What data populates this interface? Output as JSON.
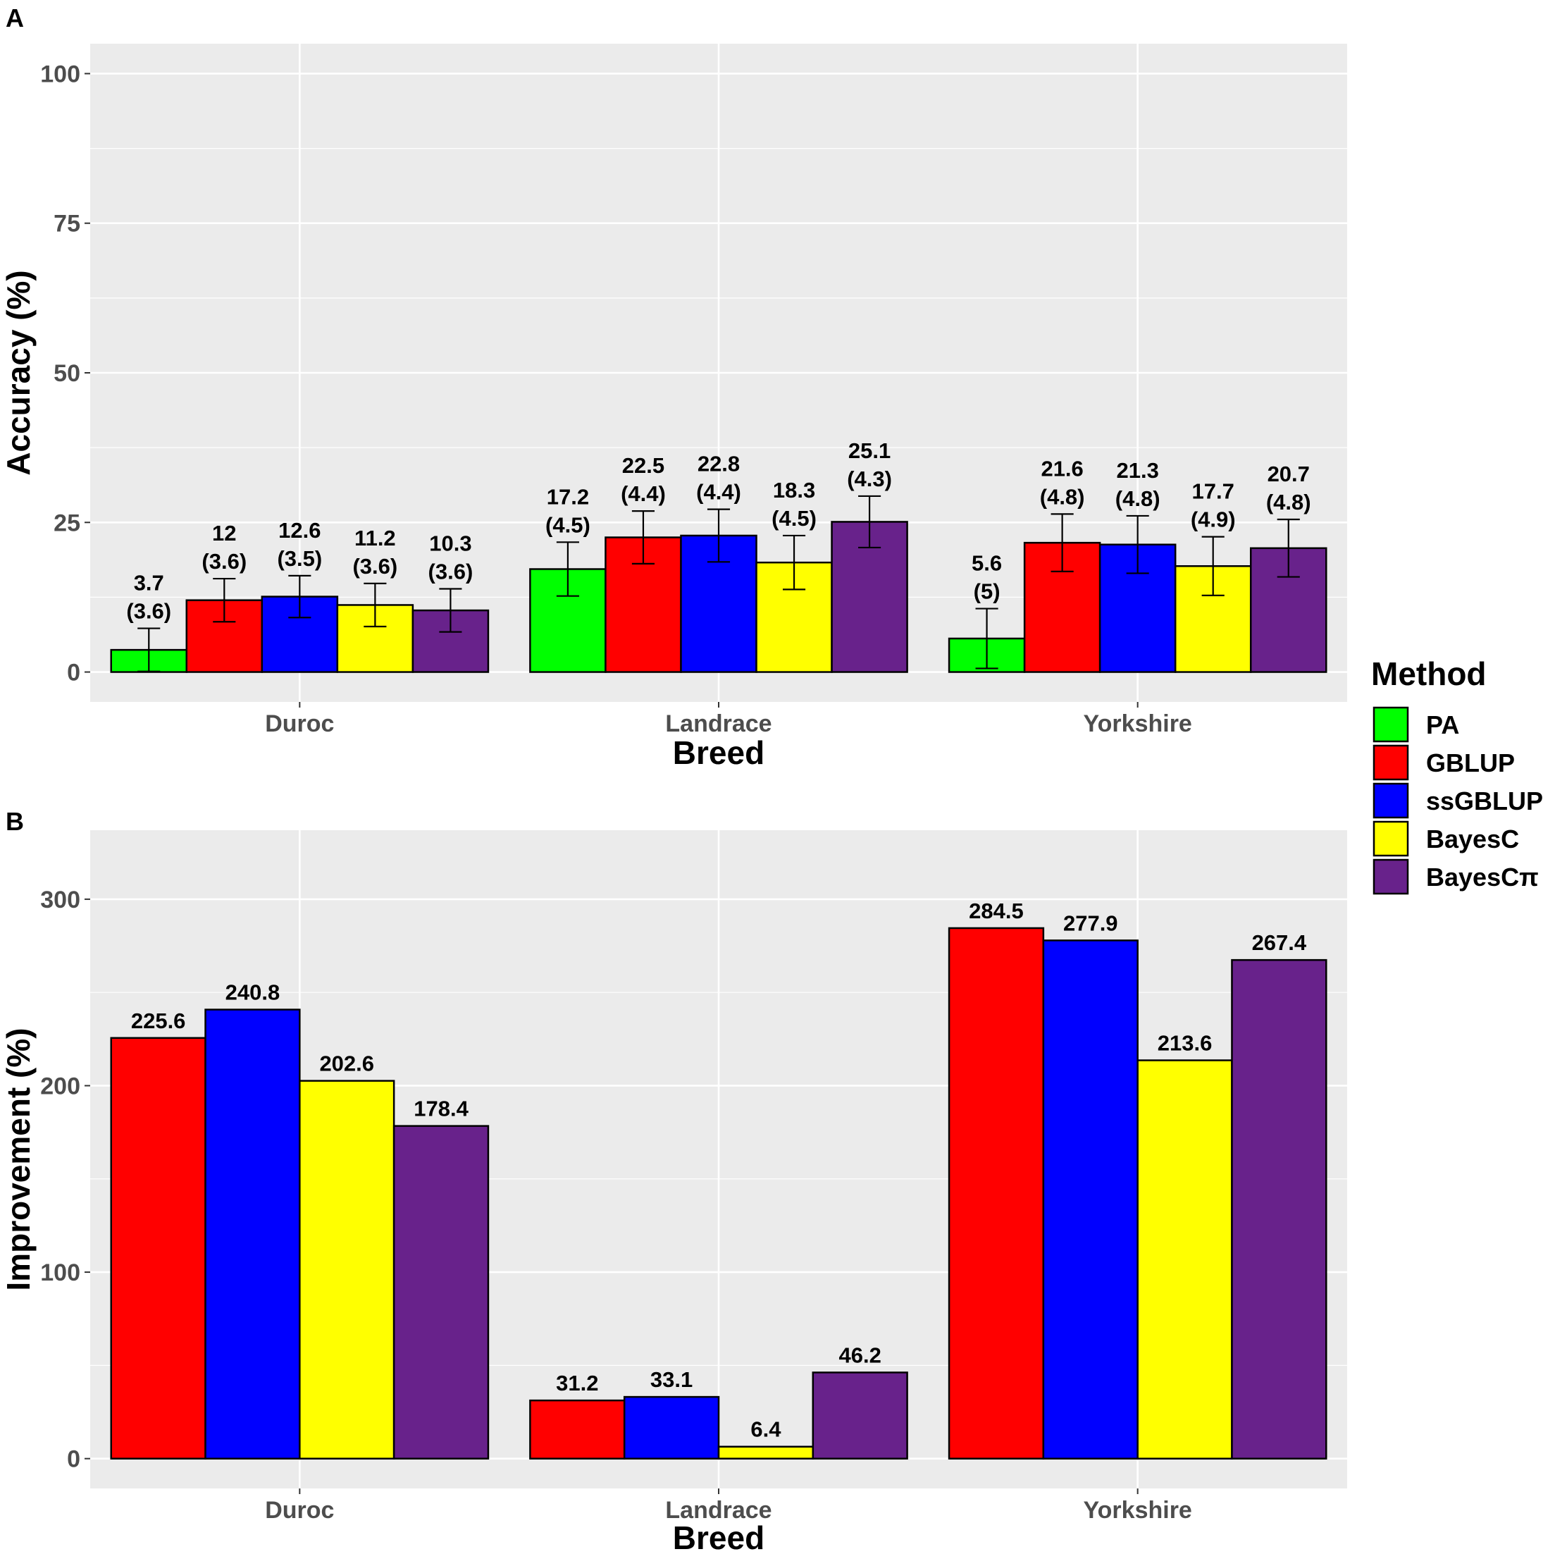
{
  "legend": {
    "title": "Method",
    "items": [
      {
        "label": "PA",
        "color": "#00ff00"
      },
      {
        "label": "GBLUP",
        "color": "#ff0000"
      },
      {
        "label": "ssGBLUP",
        "color": "#0000ff"
      },
      {
        "label": "BayesC",
        "color": "#ffff00"
      },
      {
        "label": "BayesCπ",
        "color": "#68228b"
      }
    ]
  },
  "chart_data": [
    {
      "panel": "A",
      "type": "bar",
      "xlabel": "Breed",
      "ylabel": "Accuracy (%)",
      "categories": [
        "Duroc",
        "Landrace",
        "Yorkshire"
      ],
      "ylim": [
        -5,
        105
      ],
      "yticks": [
        0,
        25,
        50,
        75,
        100
      ],
      "series": [
        {
          "name": "PA",
          "color": "#00ff00",
          "values": [
            3.7,
            17.2,
            5.6
          ],
          "errors": [
            3.6,
            4.5,
            5
          ],
          "labels": [
            "3.7\n(3.6)",
            "17.2\n(4.5)",
            "5.6\n(5)"
          ]
        },
        {
          "name": "GBLUP",
          "color": "#ff0000",
          "values": [
            12,
            22.5,
            21.6
          ],
          "errors": [
            3.6,
            4.4,
            4.8
          ],
          "labels": [
            "12\n(3.6)",
            "22.5\n(4.4)",
            "21.6\n(4.8)"
          ]
        },
        {
          "name": "ssGBLUP",
          "color": "#0000ff",
          "values": [
            12.6,
            22.8,
            21.3
          ],
          "errors": [
            3.5,
            4.4,
            4.8
          ],
          "labels": [
            "12.6\n(3.5)",
            "22.8\n(4.4)",
            "21.3\n(4.8)"
          ]
        },
        {
          "name": "BayesC",
          "color": "#ffff00",
          "values": [
            11.2,
            18.3,
            17.7
          ],
          "errors": [
            3.6,
            4.5,
            4.9
          ],
          "labels": [
            "11.2\n(3.6)",
            "18.3\n(4.5)",
            "17.7\n(4.9)"
          ]
        },
        {
          "name": "BayesCπ",
          "color": "#68228b",
          "values": [
            10.3,
            25.1,
            20.7
          ],
          "errors": [
            3.6,
            4.3,
            4.8
          ],
          "labels": [
            "10.3\n(3.6)",
            "25.1\n(4.3)",
            "20.7\n(4.8)"
          ]
        }
      ]
    },
    {
      "panel": "B",
      "type": "bar",
      "xlabel": "Breed",
      "ylabel": "Improvement (%)",
      "categories": [
        "Duroc",
        "Landrace",
        "Yorkshire"
      ],
      "ylim": [
        -16,
        337
      ],
      "yticks": [
        0,
        100,
        200,
        300
      ],
      "series": [
        {
          "name": "GBLUP",
          "color": "#ff0000",
          "values": [
            225.6,
            31.2,
            284.5
          ],
          "labels": [
            "225.6",
            "31.2",
            "284.5"
          ]
        },
        {
          "name": "ssGBLUP",
          "color": "#0000ff",
          "values": [
            240.8,
            33.1,
            277.9
          ],
          "labels": [
            "240.8",
            "33.1",
            "277.9"
          ]
        },
        {
          "name": "BayesC",
          "color": "#ffff00",
          "values": [
            202.6,
            6.4,
            213.6
          ],
          "labels": [
            "202.6",
            "6.4",
            "213.6"
          ]
        },
        {
          "name": "BayesCπ",
          "color": "#68228b",
          "values": [
            178.4,
            46.2,
            267.4
          ],
          "labels": [
            "178.4",
            "46.2",
            "267.4"
          ]
        }
      ]
    }
  ]
}
